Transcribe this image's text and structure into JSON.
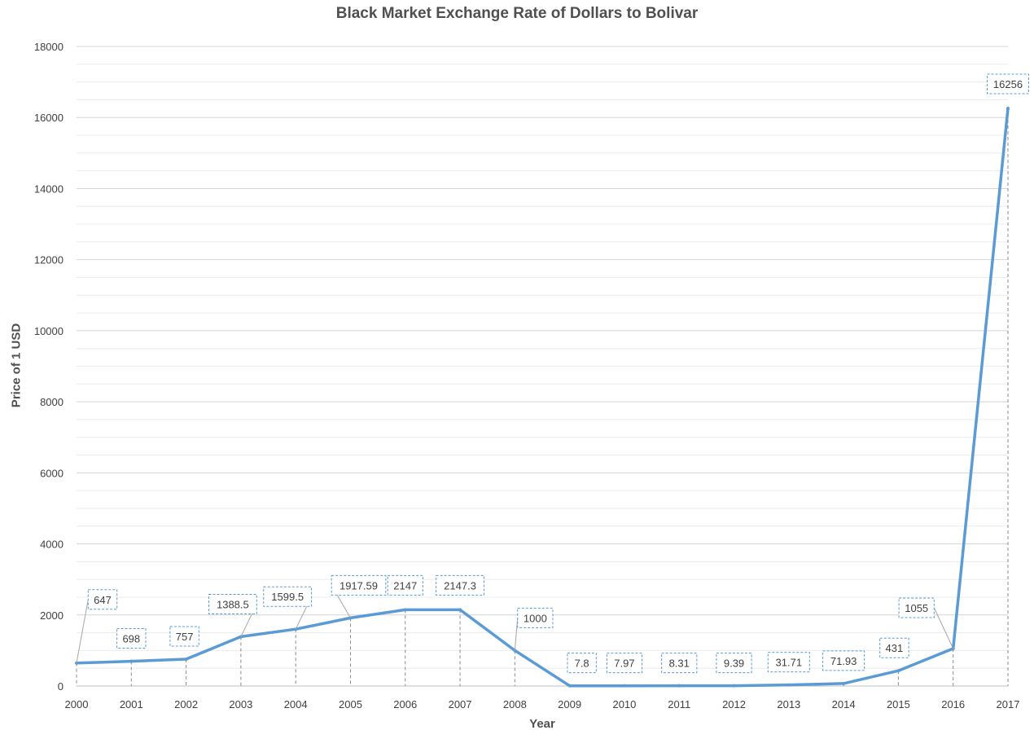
{
  "chart_data": {
    "type": "line",
    "title": "Black Market Exchange Rate of Dollars to Bolivar",
    "xlabel": "Year",
    "ylabel": "Price of 1 USD",
    "ylim": [
      0,
      18000
    ],
    "y_ticks": [
      0,
      2000,
      4000,
      6000,
      8000,
      10000,
      12000,
      14000,
      16000,
      18000
    ],
    "grid": "horizontal major and minor",
    "legend": "none",
    "line_color": "#5b9bd5",
    "categories": [
      "2000",
      "2001",
      "2002",
      "2003",
      "2004",
      "2005",
      "2006",
      "2007",
      "2008",
      "2009",
      "2010",
      "2011",
      "2012",
      "2013",
      "2014",
      "2015",
      "2016",
      "2017"
    ],
    "values": [
      647,
      698,
      757,
      1388.5,
      1599.5,
      1917.59,
      2147,
      2147.3,
      1000,
      7.8,
      7.97,
      8.31,
      9.39,
      31.71,
      71.93,
      431,
      1055,
      16256
    ],
    "data_labels": [
      "647",
      "698",
      "757",
      "1388.5",
      "1599.5",
      "1917.59",
      "2147",
      "2147.3",
      "1000",
      "7.8",
      "7.97",
      "8.31",
      "9.39",
      "31.71",
      "71.93",
      "431",
      "1055",
      "16256"
    ]
  }
}
